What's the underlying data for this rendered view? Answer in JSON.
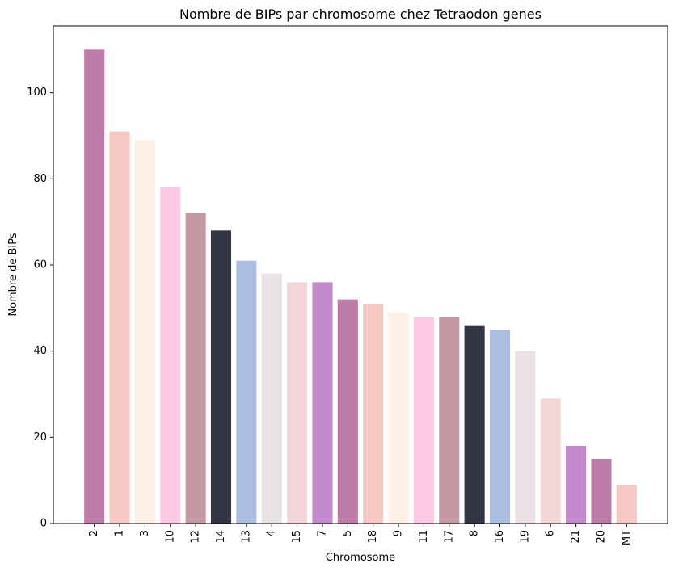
{
  "chart_data": {
    "type": "bar",
    "title": "Nombre de BIPs par chromosome chez Tetraodon genes",
    "xlabel": "Chromosome",
    "ylabel": "Nombre de BIPs",
    "categories": [
      "2",
      "1",
      "3",
      "10",
      "12",
      "14",
      "13",
      "4",
      "15",
      "7",
      "5",
      "18",
      "9",
      "11",
      "17",
      "8",
      "16",
      "19",
      "6",
      "21",
      "20",
      "MT"
    ],
    "values": [
      110,
      91,
      89,
      78,
      72,
      68,
      61,
      58,
      56,
      56,
      52,
      51,
      49,
      48,
      48,
      46,
      45,
      40,
      29,
      18,
      15,
      9
    ],
    "colors": [
      "#bd7ba8",
      "#f6c8c3",
      "#fdf0e6",
      "#fdc8e3",
      "#c499a3",
      "#313544",
      "#abbde1",
      "#e9e1e6",
      "#f2d6d7",
      "#c289cc",
      "#bd7ba8",
      "#f6c8c3",
      "#fdf0e6",
      "#fdc8e3",
      "#c499a3",
      "#313544",
      "#abbde1",
      "#e9e1e6",
      "#f2d6d7",
      "#c289cc",
      "#bd7ba8",
      "#f6c8c3"
    ],
    "ylim": [
      0,
      115.5
    ],
    "yticks": [
      0,
      20,
      40,
      60,
      80,
      100
    ],
    "grid": false
  }
}
